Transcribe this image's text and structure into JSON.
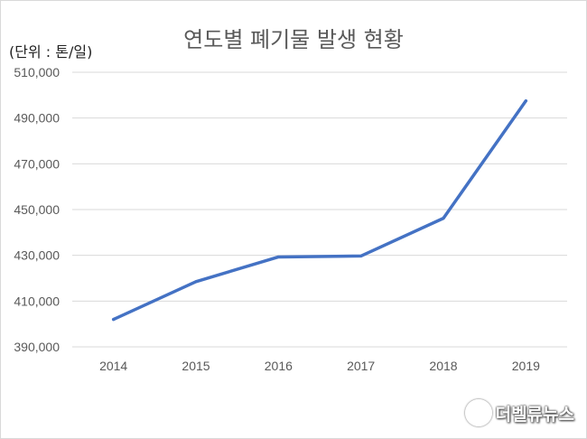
{
  "chart_data": {
    "type": "line",
    "title": "연도별 폐기물 발생 현황",
    "unit_label": "(단위 : 톤/일)",
    "categories": [
      "2014",
      "2015",
      "2016",
      "2017",
      "2018",
      "2019"
    ],
    "series": [
      {
        "values": [
          402000,
          418500,
          429300,
          429700,
          446200,
          497500
        ],
        "color": "#4472c4"
      }
    ],
    "ylim": [
      390000,
      510000
    ],
    "yticks": [
      390000,
      410000,
      430000,
      450000,
      470000,
      490000,
      510000
    ],
    "ytick_labels": [
      "390,000",
      "410,000",
      "430,000",
      "450,000",
      "470,000",
      "490,000",
      "510,000"
    ],
    "grid": true,
    "gridline_color": "#d9d9d9"
  },
  "watermark": {
    "text": "더벨류뉴스",
    "icon": "wave-logo-icon"
  }
}
